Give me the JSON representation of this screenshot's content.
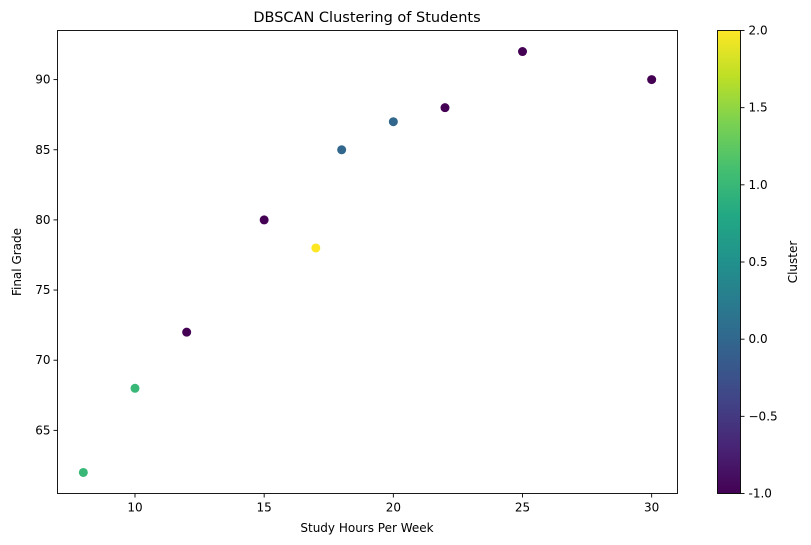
{
  "chart_data": {
    "type": "scatter",
    "title": "DBSCAN Clustering of Students",
    "xlabel": "Study Hours Per Week",
    "ylabel": "Final Grade",
    "xlim": [
      7,
      31
    ],
    "ylim": [
      60.5,
      93.5
    ],
    "xticks": [
      10,
      15,
      20,
      25,
      30
    ],
    "yticks": [
      65,
      70,
      75,
      80,
      85,
      90
    ],
    "grid": false,
    "points": [
      {
        "x": 8,
        "y": 62,
        "cluster": 1
      },
      {
        "x": 10,
        "y": 68,
        "cluster": 1
      },
      {
        "x": 12,
        "y": 72,
        "cluster": -1
      },
      {
        "x": 15,
        "y": 80,
        "cluster": -1
      },
      {
        "x": 17,
        "y": 78,
        "cluster": 2
      },
      {
        "x": 18,
        "y": 85,
        "cluster": 0
      },
      {
        "x": 20,
        "y": 87,
        "cluster": 0
      },
      {
        "x": 22,
        "y": 88,
        "cluster": -1
      },
      {
        "x": 25,
        "y": 92,
        "cluster": -1
      },
      {
        "x": 30,
        "y": 90,
        "cluster": -1
      }
    ],
    "colorbar": {
      "label": "Cluster",
      "colormap": "viridis",
      "min": -1.0,
      "max": 2.0,
      "ticks": [
        "-1.0",
        "−0.5",
        "0.0",
        "0.5",
        "1.0",
        "1.5",
        "2.0"
      ],
      "tick_values": [
        -1.0,
        -0.5,
        0.0,
        0.5,
        1.0,
        1.5,
        2.0
      ]
    }
  }
}
